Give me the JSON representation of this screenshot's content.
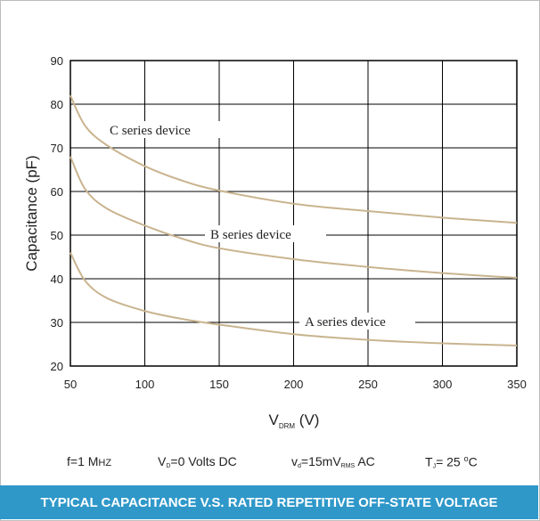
{
  "chart_data": {
    "type": "line",
    "xlabel_main": "V",
    "xlabel_sub": "DRM",
    "xlabel_unit": "(V)",
    "ylabel": "Capacitance (pF)",
    "xlim": [
      50,
      350
    ],
    "ylim": [
      20,
      90
    ],
    "xticks": [
      50,
      100,
      150,
      200,
      250,
      300,
      350
    ],
    "yticks": [
      20,
      30,
      40,
      50,
      60,
      70,
      80,
      90
    ],
    "grid": true,
    "series": [
      {
        "name": "C series device",
        "color": "#c9b48f",
        "x": [
          50,
          60,
          75,
          100,
          125,
          150,
          200,
          250,
          300,
          350
        ],
        "y": [
          82,
          75,
          70.5,
          65.8,
          62.5,
          60.2,
          57.2,
          55.5,
          54,
          52.8
        ]
      },
      {
        "name": "B series device",
        "color": "#c9b48f",
        "x": [
          50,
          60,
          75,
          100,
          125,
          150,
          200,
          250,
          300,
          350
        ],
        "y": [
          68,
          60.5,
          56,
          52.2,
          49.2,
          47,
          44.5,
          42.7,
          41.3,
          40.2
        ]
      },
      {
        "name": "A series device",
        "color": "#c9b48f",
        "x": [
          50,
          60,
          75,
          100,
          125,
          150,
          200,
          250,
          300,
          350
        ],
        "y": [
          46,
          39.5,
          35.5,
          32.6,
          30.8,
          29.5,
          27.3,
          26,
          25.2,
          24.7
        ]
      }
    ]
  },
  "conditions": {
    "freq": "f=1 M",
    "freq_unit": "HZ",
    "vd_main": "V",
    "vd_sub": "D",
    "vd_rest": "=0 Volts DC",
    "vdac_main": "v",
    "vdac_sub": "d",
    "vdac_mid": "=15mV",
    "vdac_sub2": "RMS",
    "vdac_rest": " AC",
    "tj_main": "T",
    "tj_sub": "J",
    "tj_mid": "= 25 ",
    "tj_sup": "o",
    "tj_rest": "C"
  },
  "footer": {
    "title": "TYPICAL CAPACITANCE V.S. RATED REPETITIVE OFF-STATE VOLTAGE",
    "bg_color": "#2f98c9"
  }
}
